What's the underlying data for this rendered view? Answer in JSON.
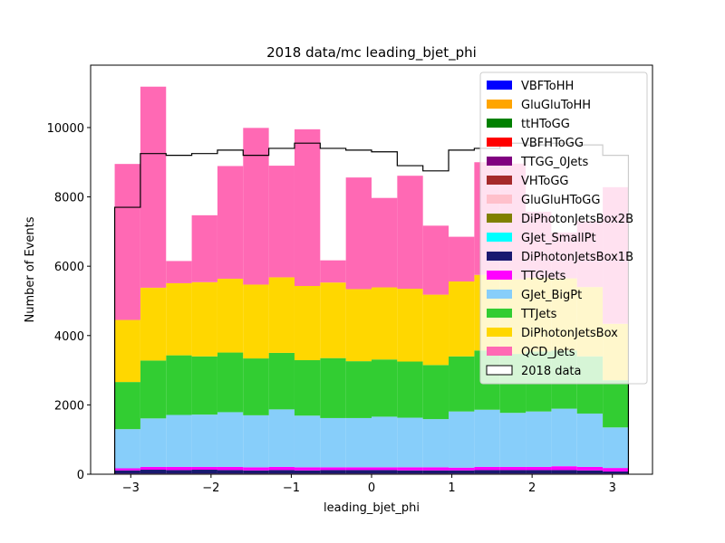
{
  "chart_data": {
    "type": "bar",
    "stacked": true,
    "title": "2018 data/mc leading_bjet_phi",
    "xlabel": "leading_bjet_phi",
    "ylabel": "Number of Events",
    "xlim": [
      -3.5,
      3.5
    ],
    "ylim": [
      0,
      11800
    ],
    "xticks": [
      -3,
      -2,
      -1,
      0,
      1,
      2,
      3
    ],
    "xtick_labels": [
      "−3",
      "−2",
      "−1",
      "0",
      "1",
      "2",
      "3"
    ],
    "yticks": [
      0,
      2000,
      4000,
      6000,
      8000,
      10000
    ],
    "ytick_labels": [
      "0",
      "2000",
      "4000",
      "6000",
      "8000",
      "10000"
    ],
    "bin_edges": [
      -3.2,
      -2.88,
      -2.56,
      -2.24,
      -1.92,
      -1.6,
      -1.28,
      -0.96,
      -0.64,
      -0.32,
      0.0,
      0.32,
      0.64,
      0.96,
      1.28,
      1.6,
      1.92,
      2.24,
      2.56,
      2.88,
      3.2
    ],
    "legend_position": "upper right",
    "series": [
      {
        "name": "VBFToHH",
        "color": "#0000ff",
        "values": [
          0,
          0,
          0,
          0,
          0,
          0,
          0,
          0,
          0,
          0,
          0,
          0,
          0,
          0,
          0,
          0,
          0,
          0,
          0,
          0
        ]
      },
      {
        "name": "GluGluToHH",
        "color": "#ffa500",
        "values": [
          0,
          0,
          0,
          0,
          0,
          0,
          0,
          0,
          0,
          0,
          0,
          0,
          0,
          0,
          0,
          0,
          0,
          0,
          0,
          0
        ]
      },
      {
        "name": "ttHToGG",
        "color": "#008000",
        "values": [
          0,
          0,
          0,
          0,
          0,
          0,
          0,
          0,
          0,
          0,
          0,
          0,
          0,
          0,
          0,
          0,
          0,
          0,
          0,
          0
        ]
      },
      {
        "name": "VBFHToGG",
        "color": "#ff0000",
        "values": [
          0,
          0,
          0,
          0,
          0,
          0,
          0,
          0,
          0,
          0,
          0,
          0,
          0,
          0,
          0,
          0,
          0,
          0,
          0,
          0
        ]
      },
      {
        "name": "TTGG_0Jets",
        "color": "#800080",
        "values": [
          20,
          20,
          20,
          20,
          20,
          20,
          20,
          20,
          20,
          20,
          20,
          20,
          20,
          20,
          20,
          20,
          20,
          20,
          20,
          20
        ]
      },
      {
        "name": "VHToGG",
        "color": "#a52a2a",
        "values": [
          0,
          0,
          0,
          0,
          0,
          0,
          0,
          0,
          0,
          0,
          0,
          0,
          0,
          0,
          0,
          0,
          0,
          0,
          0,
          0
        ]
      },
      {
        "name": "GluGluHToGG",
        "color": "#ffc0cb",
        "values": [
          0,
          0,
          0,
          0,
          0,
          0,
          0,
          0,
          0,
          0,
          0,
          0,
          0,
          0,
          0,
          0,
          0,
          0,
          0,
          0
        ]
      },
      {
        "name": "DiPhotonJetsBox2B",
        "color": "#808000",
        "values": [
          0,
          0,
          0,
          0,
          0,
          0,
          0,
          0,
          0,
          0,
          0,
          0,
          0,
          0,
          0,
          0,
          0,
          0,
          0,
          0
        ]
      },
      {
        "name": "GJet_SmallPt",
        "color": "#00ffff",
        "values": [
          0,
          0,
          0,
          0,
          0,
          0,
          0,
          0,
          0,
          0,
          0,
          0,
          0,
          0,
          0,
          0,
          0,
          0,
          0,
          0
        ]
      },
      {
        "name": "DiPhotonJetsBox1B",
        "color": "#191970",
        "values": [
          90,
          110,
          100,
          110,
          100,
          90,
          100,
          90,
          100,
          100,
          100,
          90,
          90,
          90,
          100,
          100,
          100,
          100,
          90,
          60
        ]
      },
      {
        "name": "TTGJets",
        "color": "#ff00ff",
        "values": [
          60,
          80,
          90,
          80,
          90,
          90,
          90,
          90,
          80,
          80,
          80,
          90,
          90,
          80,
          90,
          90,
          90,
          110,
          100,
          100
        ]
      },
      {
        "name": "GJet_BigPt",
        "color": "#87cefa",
        "values": [
          1130,
          1400,
          1500,
          1510,
          1580,
          1500,
          1660,
          1490,
          1420,
          1420,
          1460,
          1430,
          1390,
          1620,
          1650,
          1560,
          1600,
          1660,
          1540,
          1170
        ]
      },
      {
        "name": "TTJets",
        "color": "#32cd32",
        "values": [
          1360,
          1670,
          1720,
          1680,
          1720,
          1640,
          1630,
          1600,
          1730,
          1640,
          1650,
          1620,
          1560,
          1590,
          1710,
          1700,
          1730,
          1680,
          1650,
          1360
        ]
      },
      {
        "name": "DiPhotonJetsBox",
        "color": "#ffd700",
        "values": [
          1790,
          2100,
          2080,
          2140,
          2130,
          2130,
          2180,
          2140,
          2180,
          2080,
          2080,
          2100,
          2030,
          2160,
          2180,
          2150,
          2130,
          2080,
          2000,
          1630
        ]
      },
      {
        "name": "QCD_Jets",
        "color": "#ff69b4",
        "values": [
          4500,
          5800,
          640,
          1930,
          3250,
          4520,
          3220,
          4520,
          640,
          3220,
          2580,
          3260,
          1990,
          1290,
          3250,
          3340,
          1900,
          1320,
          1900,
          3940
        ]
      }
    ],
    "data": {
      "name": "2018 data",
      "color": "#000000",
      "values": [
        7700,
        9250,
        9200,
        9250,
        9350,
        9200,
        9400,
        9550,
        9400,
        9350,
        9300,
        8900,
        8750,
        9350,
        9400,
        9550,
        9500,
        9550,
        9500,
        9200
      ]
    }
  }
}
